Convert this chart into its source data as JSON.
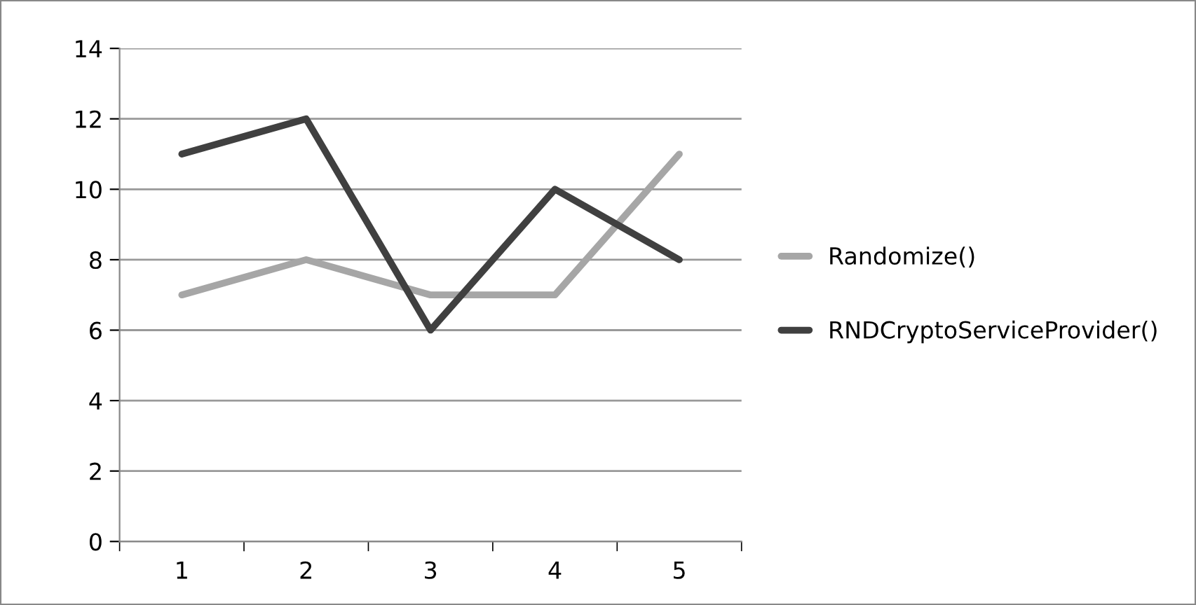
{
  "chart_data": {
    "type": "line",
    "categories": [
      "1",
      "2",
      "3",
      "4",
      "5"
    ],
    "series": [
      {
        "name": "Randomize()",
        "color": "#a6a6a6",
        "values": [
          7,
          8,
          7,
          7,
          11
        ]
      },
      {
        "name": "RNDCryptoServiceProvider()",
        "color": "#404040",
        "values": [
          11,
          12,
          6,
          10,
          8
        ]
      }
    ],
    "ylim": [
      0,
      14
    ],
    "yticks": [
      0,
      2,
      4,
      6,
      8,
      10,
      12,
      14
    ],
    "grid": "y",
    "legend": "right",
    "marker": "none",
    "line_style": "solid"
  }
}
